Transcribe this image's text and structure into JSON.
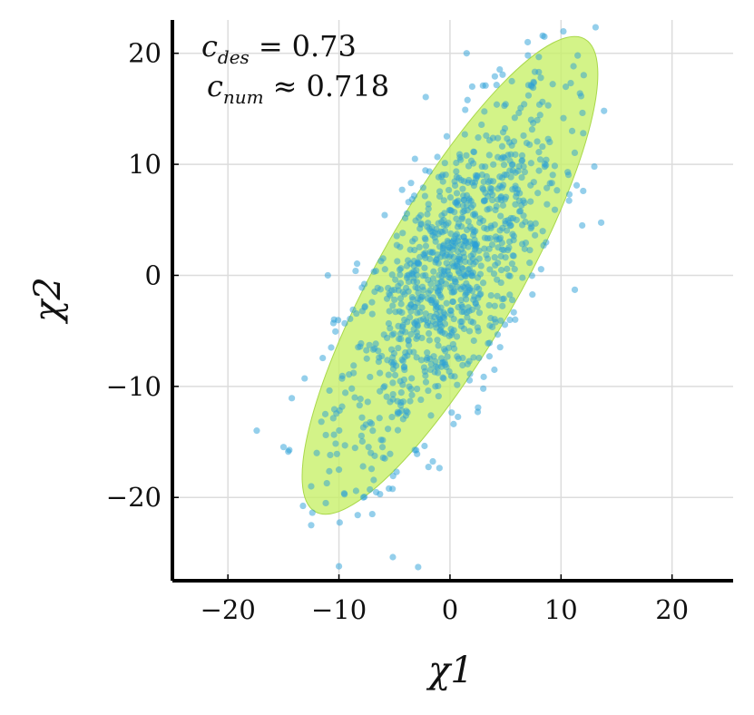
{
  "chart_data": {
    "type": "scatter",
    "xlabel": "χ1",
    "ylabel": "χ2",
    "xlim": [
      -25,
      25.5
    ],
    "ylim": [
      -27.5,
      23
    ],
    "x_ticks": [
      -20,
      -10,
      0,
      10,
      20
    ],
    "y_ticks": [
      -20,
      -10,
      0,
      10,
      20
    ],
    "x_tick_labels": [
      "−20",
      "−10",
      "0",
      "10",
      "20"
    ],
    "y_tick_labels": [
      "−20",
      "−10",
      "0",
      "10",
      "20"
    ],
    "grid": true,
    "annotations": [
      {
        "var": "c",
        "sub": "des",
        "rel": "=",
        "value": "0.73"
      },
      {
        "var": "c",
        "sub": "num",
        "rel": "≈",
        "value": "0.718"
      }
    ],
    "ellipse": {
      "center": [
        0,
        0
      ],
      "semi_major": 24.5,
      "semi_minor": 6.3,
      "angle_deg": 60.3,
      "color": "#c8f06a"
    },
    "point_color": "#2a9fd8",
    "n_points": 1000,
    "outliers": [
      [
        7,
        21
      ],
      [
        8.5,
        21.5
      ],
      [
        11.5,
        19.8
      ],
      [
        1.5,
        20
      ],
      [
        2,
        17
      ],
      [
        11,
        13
      ],
      [
        12,
        12.8
      ],
      [
        13,
        9.8
      ],
      [
        12,
        7.6
      ],
      [
        -11,
        0
      ],
      [
        -8.5,
        0.4
      ],
      [
        -10.5,
        -4.3
      ],
      [
        -10.7,
        -6.5
      ],
      [
        -12,
        -16
      ],
      [
        -10,
        -17.5
      ],
      [
        -12.5,
        -19
      ],
      [
        -7.8,
        -20
      ],
      [
        -7,
        -21.5
      ],
      [
        -12.5,
        -22.5
      ],
      [
        -10,
        -26.2
      ],
      [
        2.5,
        -12.3
      ],
      [
        3,
        -10.2
      ],
      [
        4,
        -8.5
      ],
      [
        -5.5,
        -19.2
      ],
      [
        -6.3,
        -19.7
      ]
    ]
  }
}
